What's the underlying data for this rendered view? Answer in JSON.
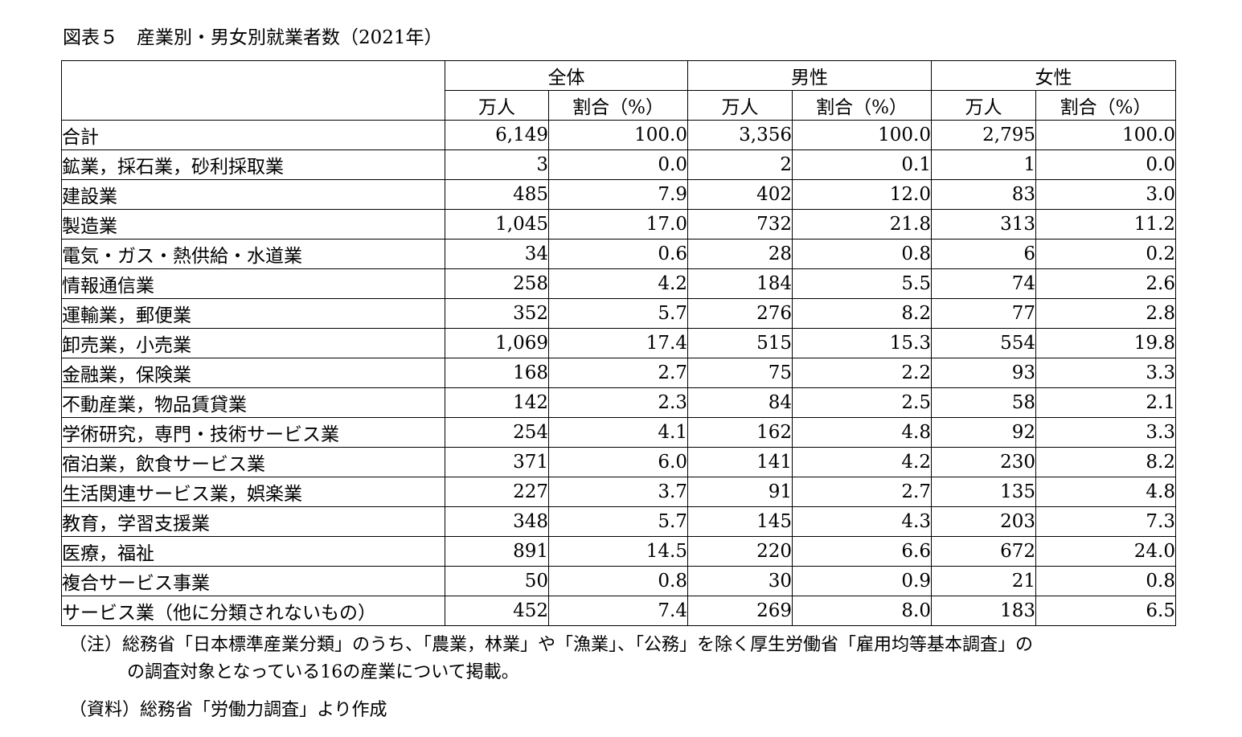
{
  "title": "図表５　産業別・男女別就業者数（2021年）",
  "header": {
    "groups": [
      "全体",
      "男性",
      "女性"
    ],
    "sub": [
      "万人",
      "割合（%）",
      "万人",
      "割合（%）",
      "万人",
      "割合（%）"
    ]
  },
  "rows": [
    {
      "label": "合計",
      "values": [
        "6,149",
        "100.0",
        "3,356",
        "100.0",
        "2,795",
        "100.0"
      ]
    },
    {
      "label": "鉱業，採石業，砂利採取業",
      "values": [
        "3",
        "0.0",
        "2",
        "0.1",
        "1",
        "0.0"
      ]
    },
    {
      "label": "建設業",
      "values": [
        "485",
        "7.9",
        "402",
        "12.0",
        "83",
        "3.0"
      ]
    },
    {
      "label": "製造業",
      "values": [
        "1,045",
        "17.0",
        "732",
        "21.8",
        "313",
        "11.2"
      ]
    },
    {
      "label": "電気・ガス・熱供給・水道業",
      "values": [
        "34",
        "0.6",
        "28",
        "0.8",
        "6",
        "0.2"
      ]
    },
    {
      "label": "情報通信業",
      "values": [
        "258",
        "4.2",
        "184",
        "5.5",
        "74",
        "2.6"
      ]
    },
    {
      "label": "運輸業，郵便業",
      "values": [
        "352",
        "5.7",
        "276",
        "8.2",
        "77",
        "2.8"
      ]
    },
    {
      "label": "卸売業，小売業",
      "values": [
        "1,069",
        "17.4",
        "515",
        "15.3",
        "554",
        "19.8"
      ]
    },
    {
      "label": "金融業，保険業",
      "values": [
        "168",
        "2.7",
        "75",
        "2.2",
        "93",
        "3.3"
      ]
    },
    {
      "label": "不動産業，物品賃貸業",
      "values": [
        "142",
        "2.3",
        "84",
        "2.5",
        "58",
        "2.1"
      ]
    },
    {
      "label": "学術研究，専門・技術サービス業",
      "values": [
        "254",
        "4.1",
        "162",
        "4.8",
        "92",
        "3.3"
      ]
    },
    {
      "label": "宿泊業，飲食サービス業",
      "values": [
        "371",
        "6.0",
        "141",
        "4.2",
        "230",
        "8.2"
      ]
    },
    {
      "label": "生活関連サービス業，娯楽業",
      "values": [
        "227",
        "3.7",
        "91",
        "2.7",
        "135",
        "4.8"
      ]
    },
    {
      "label": "教育，学習支援業",
      "values": [
        "348",
        "5.7",
        "145",
        "4.3",
        "203",
        "7.3"
      ]
    },
    {
      "label": "医療，福祉",
      "values": [
        "891",
        "14.5",
        "220",
        "6.6",
        "672",
        "24.0"
      ]
    },
    {
      "label": "複合サービス事業",
      "values": [
        "50",
        "0.8",
        "30",
        "0.9",
        "21",
        "0.8"
      ]
    },
    {
      "label": "サービス業（他に分類されないもの）",
      "values": [
        "452",
        "7.4",
        "269",
        "8.0",
        "183",
        "6.5"
      ]
    }
  ],
  "notes": {
    "note_line1": "（注）総務省「日本標準産業分類」のうち、「農業，林業」や「漁業」、「公務」を除く厚生労働省「雇用均等基本調査」の",
    "note_line2": "の調査対象となっている16の産業について掲載。",
    "source": "（資料）総務省「労働力調査」より作成"
  }
}
